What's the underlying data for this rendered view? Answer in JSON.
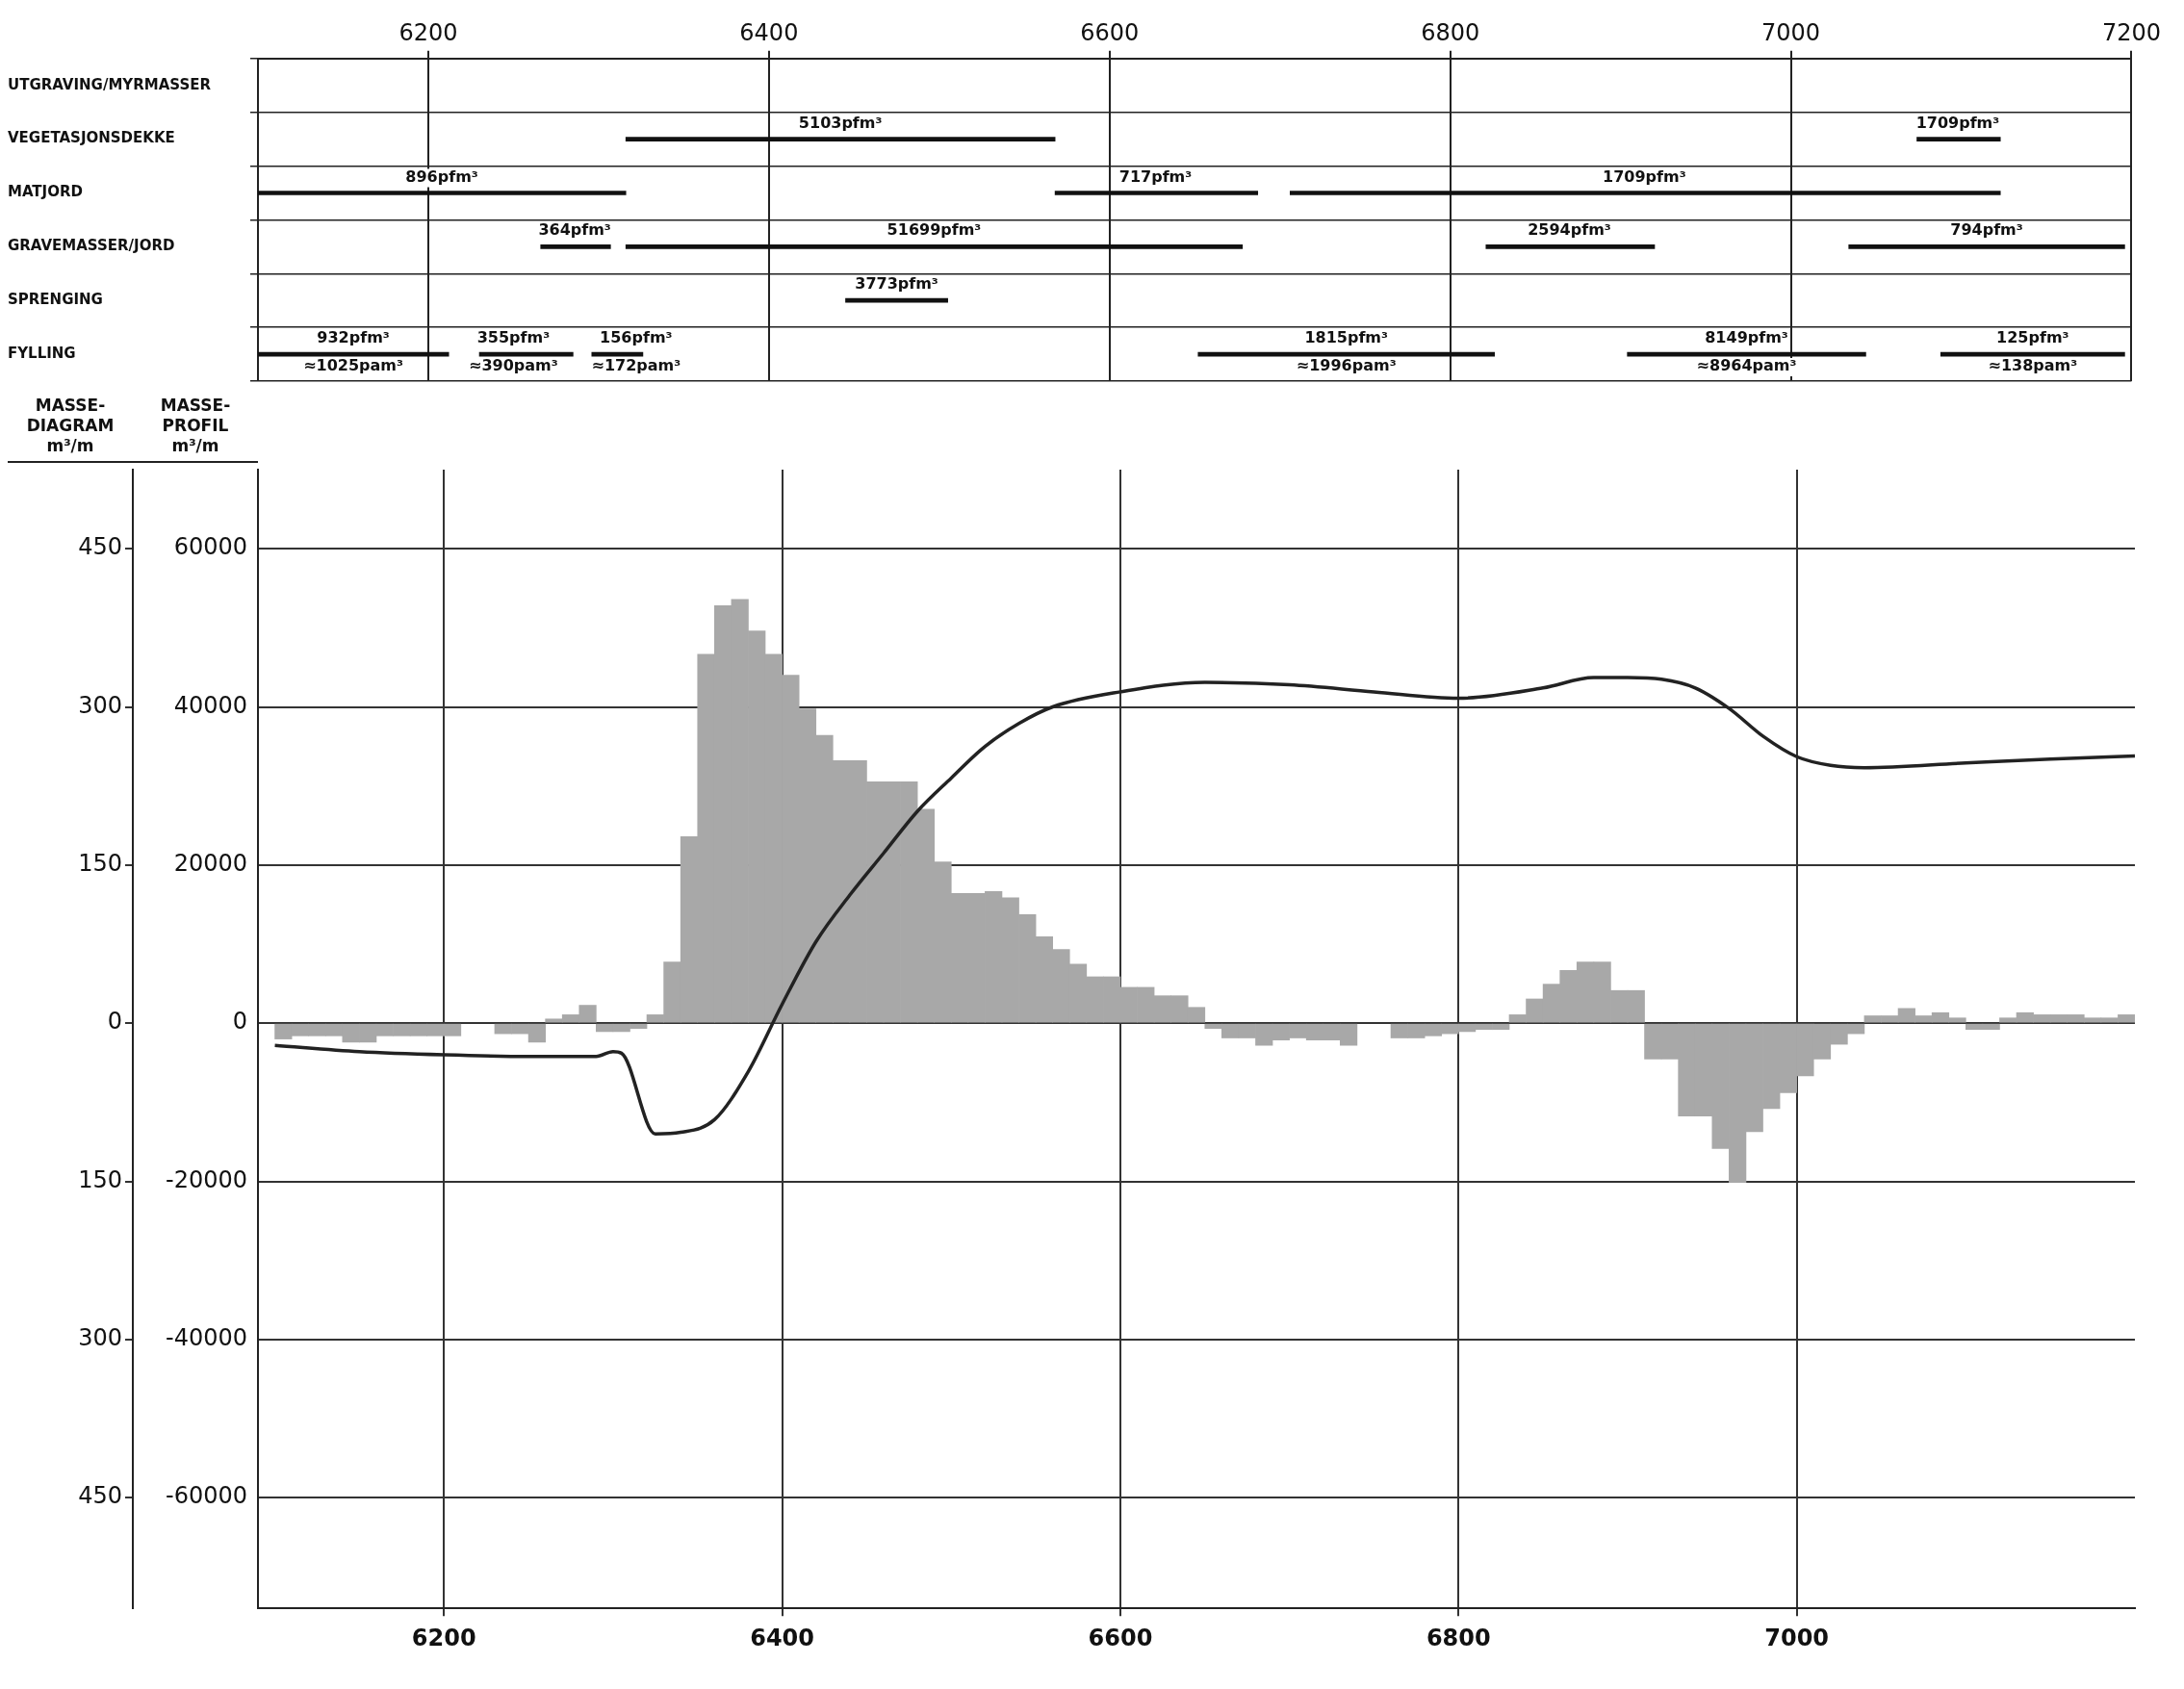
{
  "chart_data": [
    {
      "type": "bar",
      "orientation": "horizontal",
      "categories": [
        "UTGRAVING/MYRMASSER",
        "VEGETASJONSDEKKE",
        "MATJORD",
        "GRAVEMASSER/JORD",
        "SPRENGING",
        "FYLLING"
      ],
      "xlim": [
        6100,
        7200
      ],
      "xticks": [
        6200,
        6400,
        6600,
        6800,
        7000,
        7200
      ],
      "grid": true,
      "annotations": [
        {
          "text": "5103pfm³",
          "x": 6442,
          "y": "VEGETASJONSDEKKE"
        },
        {
          "text": "1709pfm³",
          "x": 7098,
          "y": "VEGETASJONSDEKKE"
        },
        {
          "text": "896pfm³",
          "x": 6208,
          "y": "MATJORD"
        },
        {
          "text": "717pfm³",
          "x": 6627,
          "y": "MATJORD"
        },
        {
          "text": "1709pfm³",
          "x": 6914,
          "y": "MATJORD"
        },
        {
          "text": "364pfm³",
          "x": 6286,
          "y": "GRAVEMASSER/JORD"
        },
        {
          "text": "51699pfm³",
          "x": 6497,
          "y": "GRAVEMASSER/JORD"
        },
        {
          "text": "2594pfm³",
          "x": 6870,
          "y": "GRAVEMASSER/JORD"
        },
        {
          "text": "794pfm³",
          "x": 7115,
          "y": "GRAVEMASSER/JORD"
        },
        {
          "text": "3773pfm³",
          "x": 6475,
          "y": "SPRENGING"
        },
        {
          "text": "932pfm³\n≈1025pam³",
          "x": 6156,
          "y": "FYLLING"
        },
        {
          "text": "355pfm³\n≈390pam³",
          "x": 6250,
          "y": "FYLLING"
        },
        {
          "text": "156pfm³\n≈172pam³",
          "x": 6322,
          "y": "FYLLING"
        },
        {
          "text": "1815pfm³\n≈1996pam³",
          "x": 6739,
          "y": "FYLLING"
        },
        {
          "text": "8149pfm³\n≈8964pam³",
          "x": 6974,
          "y": "FYLLING"
        },
        {
          "text": "125pfm³\n≈138pam³",
          "x": 7142,
          "y": "FYLLING"
        }
      ],
      "series": [
        {
          "color": "#111111",
          "base": [
            null,
            6316,
            6100,
            6266,
            6445,
            6100
          ],
          "values": [
            null,
            252,
            216,
            41,
            60,
            112
          ]
        },
        {
          "color": "#111111",
          "base": [
            null,
            7074,
            6568,
            6316,
            null,
            6230
          ],
          "values": [
            null,
            49,
            119,
            362,
            null,
            55
          ]
        },
        {
          "color": "#111111",
          "base": [
            null,
            null,
            6706,
            6821,
            null,
            6296
          ],
          "values": [
            null,
            null,
            417,
            99,
            null,
            30
          ]
        },
        {
          "color": "#111111",
          "base": [
            null,
            null,
            null,
            7034,
            null,
            6652
          ],
          "values": [
            null,
            null,
            null,
            162,
            null,
            174
          ]
        },
        {
          "color": "#111111",
          "base": [
            null,
            null,
            null,
            null,
            null,
            6904
          ],
          "values": [
            null,
            null,
            null,
            null,
            null,
            140
          ]
        },
        {
          "color": "#111111",
          "base": [
            null,
            null,
            null,
            null,
            null,
            7088
          ],
          "values": [
            null,
            null,
            null,
            null,
            null,
            108
          ]
        }
      ]
    },
    {
      "type": "histogram",
      "ylabel": "MASSE-\nDIAGRAM\nm³/m",
      "y2label": "MASSE-\nPROFIL\nm³/m",
      "xlim": [
        6090,
        7200
      ],
      "xticks": [
        6200,
        6400,
        6600,
        6800,
        7000
      ],
      "ylim": [
        -555,
        525
      ],
      "yticks": [
        {
          "value": -450,
          "label": "450"
        },
        {
          "value": -300,
          "label": "300"
        },
        {
          "value": -150,
          "label": "150"
        },
        0,
        150,
        300,
        450
      ],
      "y2lim": [
        -74000,
        70000
      ],
      "y2ticks": [
        -60000,
        -40000,
        -20000,
        0,
        20000,
        40000,
        60000
      ],
      "grid": true,
      "series": [
        {
          "type": "histogram",
          "color": "#a8a8a8",
          "bins": [
            6100,
            6110,
            6120,
            6130,
            6140,
            6150,
            6160,
            6170,
            6180,
            6190,
            6200,
            6210,
            6220,
            6230,
            6240,
            6250,
            6260,
            6270,
            6280,
            6290,
            6300,
            6310,
            6320,
            6330,
            6340,
            6350,
            6360,
            6370,
            6380,
            6390,
            6400,
            6410,
            6420,
            6430,
            6440,
            6450,
            6460,
            6470,
            6480,
            6490,
            6500,
            6510,
            6520,
            6530,
            6540,
            6550,
            6560,
            6570,
            6580,
            6590,
            6600,
            6610,
            6620,
            6630,
            6640,
            6650,
            6660,
            6670,
            6680,
            6690,
            6700,
            6710,
            6720,
            6730,
            6740,
            6750,
            6760,
            6770,
            6780,
            6790,
            6800,
            6810,
            6820,
            6830,
            6840,
            6850,
            6860,
            6870,
            6880,
            6890,
            6900,
            6910,
            6920,
            6930,
            6940,
            6950,
            6960,
            6970,
            6980,
            6990,
            7000,
            7010,
            7020,
            7030,
            7040,
            7050,
            7060,
            7070,
            7080,
            7090,
            7100,
            7110,
            7120,
            7130,
            7140,
            7150,
            7160,
            7170,
            7180,
            7190,
            7200
          ],
          "values": [
            -15,
            -12,
            -12,
            -12,
            -18,
            -18,
            -12,
            -12,
            -12,
            -12,
            -12,
            null,
            null,
            -10,
            -10,
            -18,
            4,
            8,
            17,
            -8,
            -8,
            -5,
            8,
            58,
            177,
            350,
            396,
            402,
            372,
            350,
            330,
            298,
            273,
            249,
            249,
            229,
            229,
            229,
            203,
            153,
            123,
            123,
            125,
            119,
            103,
            82,
            70,
            56,
            44,
            44,
            34,
            34,
            26,
            26,
            15,
            -5,
            -14,
            -14,
            -21,
            -16,
            -14,
            -16,
            -16,
            -21,
            null,
            null,
            -14,
            -14,
            -12,
            -10,
            -8,
            -6,
            -6,
            8,
            23,
            37,
            50,
            58,
            58,
            31,
            31,
            -34,
            -34,
            -88,
            -88,
            -119,
            -151,
            -103,
            -81,
            -66,
            -50,
            -34,
            -20,
            -10,
            7,
            7,
            14,
            7,
            10,
            5,
            -6,
            -6,
            5,
            10,
            8,
            8,
            8,
            5,
            5,
            8
          ]
        },
        {
          "type": "line",
          "axis": "y2",
          "color": "#222222",
          "x": [
            6100,
            6150,
            6200,
            6250,
            6290,
            6300,
            6305,
            6325,
            6340,
            6360,
            6380,
            6400,
            6420,
            6440,
            6460,
            6480,
            6500,
            6520,
            6540,
            6560,
            6600,
            6650,
            6700,
            6750,
            6800,
            6850,
            6880,
            6900,
            6920,
            6940,
            6960,
            6980,
            7000,
            7020,
            7040,
            7100,
            7150,
            7200
          ],
          "values": [
            -2800,
            -3600,
            -4000,
            -4200,
            -4200,
            -3600,
            -3800,
            -14000,
            -13800,
            -12200,
            -6100,
            2400,
            10300,
            16200,
            21500,
            26800,
            31000,
            35000,
            37900,
            40000,
            41900,
            43100,
            42800,
            41900,
            41100,
            42400,
            43700,
            43700,
            43500,
            42400,
            39800,
            36300,
            33700,
            32600,
            32300,
            32900,
            33400,
            33800
          ]
        }
      ]
    }
  ]
}
